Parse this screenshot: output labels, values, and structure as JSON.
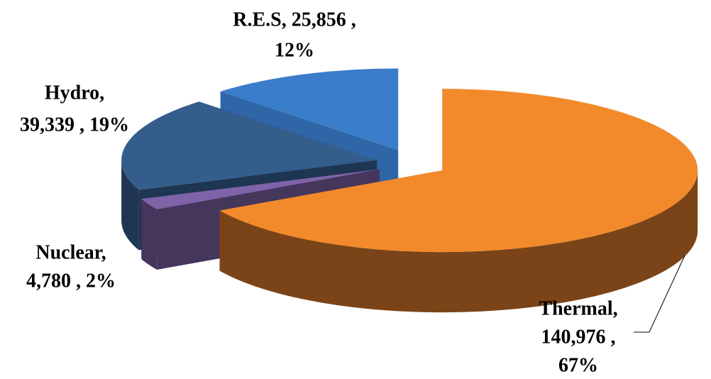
{
  "chart_data": {
    "type": "pie3d",
    "labels": [
      [
        "Thermal,",
        "140,976 ,",
        "67%"
      ],
      [
        "Nuclear,",
        "4,780 , 2%"
      ],
      [
        "Hydro,",
        "39,339 , 19%"
      ],
      [
        "R.E.S,  25,856 ,",
        "12%"
      ]
    ],
    "values": [
      140976,
      4780,
      39339,
      25856
    ],
    "percents": [
      67,
      2,
      19,
      12
    ],
    "colors": [
      "#f28a2c",
      "#7f63a8",
      "#345d8c",
      "#3a7dca"
    ],
    "side_colors": [
      "#7b4418",
      "#45365c",
      "#1f3652",
      "#2e66a8"
    ]
  }
}
